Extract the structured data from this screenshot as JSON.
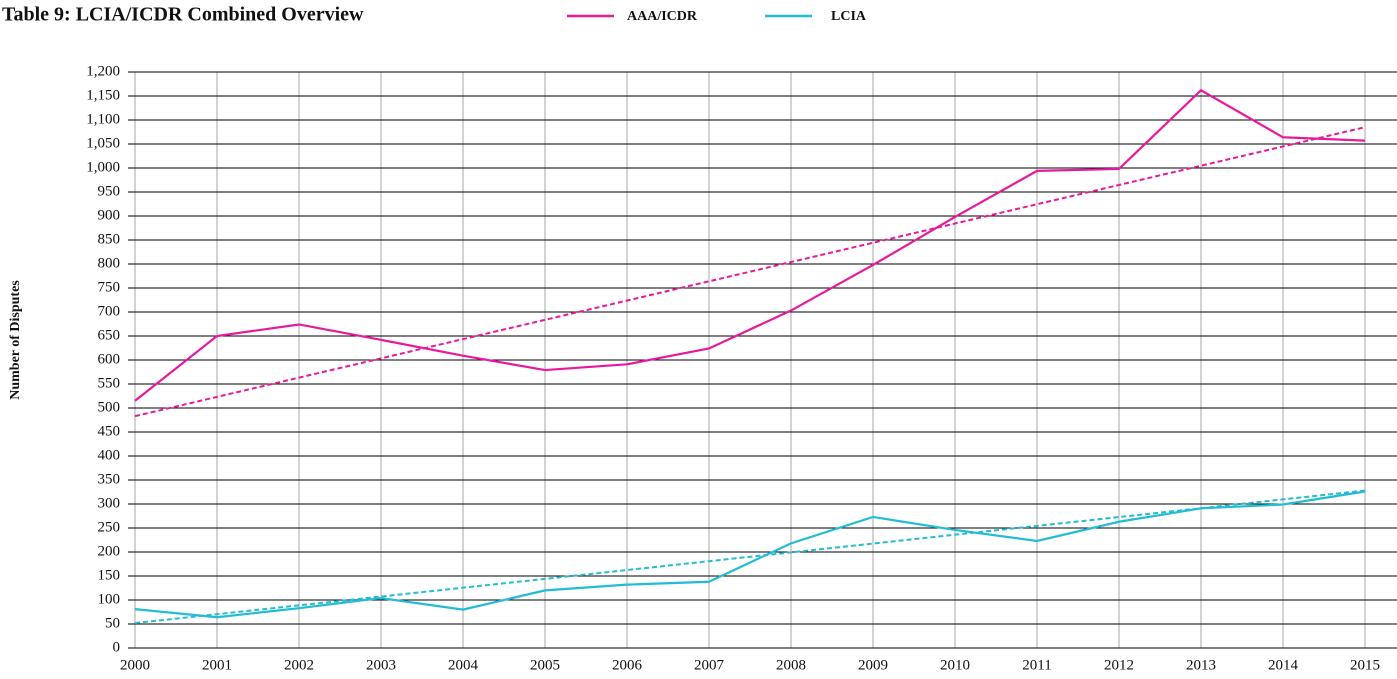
{
  "chart_data": {
    "type": "line",
    "title": "Table 9: LCIA/ICDR Combined Overview",
    "y_label": "Number of Disputes",
    "categories": [
      "2000",
      "2001",
      "2002",
      "2003",
      "2004",
      "2005",
      "2006",
      "2007",
      "2008",
      "2009",
      "2010",
      "2011",
      "2012",
      "2013",
      "2014",
      "2015"
    ],
    "series": [
      {
        "name": "AAA/ICDR",
        "color": "#e8199c",
        "values": [
          515,
          650,
          674,
          642,
          609,
          579,
          591,
          624,
          703,
          798,
          898,
          994,
          998,
          1162,
          1064,
          1057
        ],
        "trend": [
          483,
          1085
        ]
      },
      {
        "name": "LCIA",
        "color": "#22bcd4",
        "values": [
          81,
          64,
          83,
          104,
          80,
          120,
          132,
          138,
          218,
          273,
          246,
          223,
          263,
          291,
          299,
          326
        ],
        "trend": [
          52,
          328
        ]
      }
    ],
    "ylim": [
      0,
      1200
    ],
    "yticks": [
      0,
      50,
      100,
      150,
      200,
      250,
      300,
      350,
      400,
      450,
      500,
      550,
      600,
      650,
      700,
      750,
      800,
      850,
      900,
      950,
      {
        "value": 1000,
        "label": "1,000"
      },
      {
        "value": 1050,
        "label": "1,050"
      },
      {
        "value": 1100,
        "label": "1,100"
      },
      {
        "value": 1150,
        "label": "1,150"
      },
      {
        "value": 1200,
        "label": "1,200"
      }
    ],
    "grid": true
  }
}
